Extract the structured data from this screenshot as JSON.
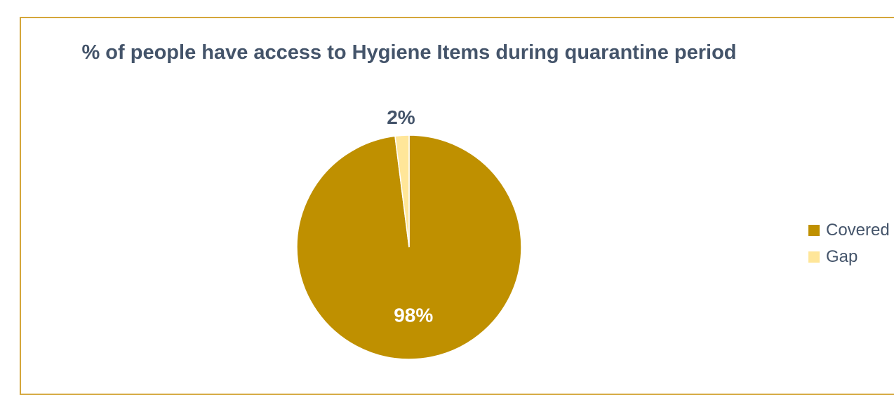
{
  "chart_data": {
    "type": "pie",
    "title": "% of people have access to Hygiene Items during quarantine period",
    "categories": [
      "Covered",
      "Gap"
    ],
    "values": [
      98,
      2
    ],
    "data_labels": [
      "98%",
      "2%"
    ],
    "colors": [
      "#bf9000",
      "#ffe699"
    ],
    "label_colors": [
      "#ffffff",
      "#44546a"
    ],
    "legend_position": "right"
  }
}
